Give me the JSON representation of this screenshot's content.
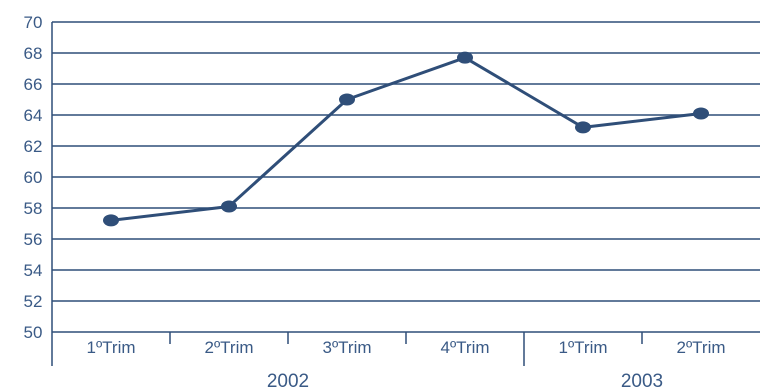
{
  "chart_data": {
    "type": "line",
    "title": "",
    "xlabel": "",
    "ylabel": "",
    "categories": [
      "1ºTrim",
      "2ºTrim",
      "3ºTrim",
      "4ºTrim",
      "1ºTrim",
      "2ºTrim"
    ],
    "groups": [
      {
        "label": "2002",
        "start": 0,
        "end": 3
      },
      {
        "label": "2003",
        "start": 4,
        "end": 5
      }
    ],
    "series": [
      {
        "values": [
          57.2,
          58.1,
          65.0,
          67.7,
          63.2,
          64.1
        ]
      }
    ],
    "ylim": [
      50,
      70
    ],
    "yticks": [
      "50",
      "52",
      "54",
      "56",
      "58",
      "60",
      "62",
      "64",
      "66",
      "68",
      "70"
    ],
    "grid": true,
    "legend": "none",
    "colors": {
      "line": "#2f4e78",
      "grid": "#2f4e78",
      "text": "#3a5a86"
    }
  }
}
